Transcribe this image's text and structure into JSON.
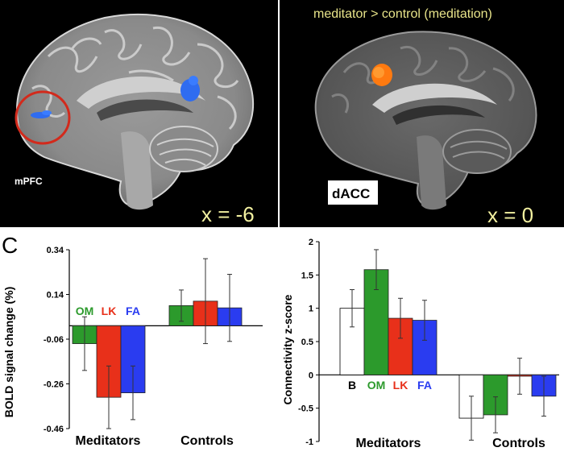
{
  "figure": {
    "left_brain": {
      "region_label": "mPFC",
      "coord_label": "x = -6",
      "colors": {
        "activation": "#2f6cf0",
        "circle": "#d22a1c",
        "coord_text": "#f2f0a0"
      }
    },
    "right_brain": {
      "title": "meditator > control (meditation)",
      "region_label": "dACC",
      "coord_label": "x = 0",
      "colors": {
        "activation": "#ff7a10",
        "title_text": "#e8e48a",
        "coord_text": "#f2f0a0"
      }
    }
  },
  "chart_data": [
    {
      "type": "bar",
      "panel_label": "C",
      "ylabel": "BOLD signal change (%)",
      "ylim": [
        -0.46,
        0.34
      ],
      "yticks": [
        "0.34",
        "0.14",
        "-0.06",
        "-0.26",
        "-0.46"
      ],
      "groups": [
        "Meditators",
        "Controls"
      ],
      "series": [
        {
          "name": "OM",
          "color": "#2c9a2c",
          "values": [
            -0.08,
            0.09
          ],
          "errors": [
            0.12,
            0.07
          ]
        },
        {
          "name": "LK",
          "color": "#e8301a",
          "values": [
            -0.32,
            0.11
          ],
          "errors": [
            0.14,
            0.19
          ]
        },
        {
          "name": "FA",
          "color": "#2a3cf0",
          "values": [
            -0.3,
            0.08
          ],
          "errors": [
            0.12,
            0.15
          ]
        }
      ],
      "grid": false
    },
    {
      "type": "bar",
      "ylabel": "Connectivity z-score",
      "ylim": [
        -1,
        2
      ],
      "yticks": [
        "2",
        "1.5",
        "1",
        "0.5",
        "0",
        "-0.5",
        "-1"
      ],
      "groups": [
        "Meditators",
        "Controls"
      ],
      "series": [
        {
          "name": "B",
          "color": "#ffffff",
          "values": [
            1.0,
            -0.65
          ],
          "errors": [
            0.28,
            0.33
          ]
        },
        {
          "name": "OM",
          "color": "#2c9a2c",
          "values": [
            1.58,
            -0.6
          ],
          "errors": [
            0.3,
            0.27
          ]
        },
        {
          "name": "LK",
          "color": "#e8301a",
          "values": [
            0.85,
            -0.02
          ],
          "errors": [
            0.3,
            0.27
          ]
        },
        {
          "name": "FA",
          "color": "#2a3cf0",
          "values": [
            0.82,
            -0.32
          ],
          "errors": [
            0.3,
            0.3
          ]
        }
      ],
      "grid": false
    }
  ]
}
